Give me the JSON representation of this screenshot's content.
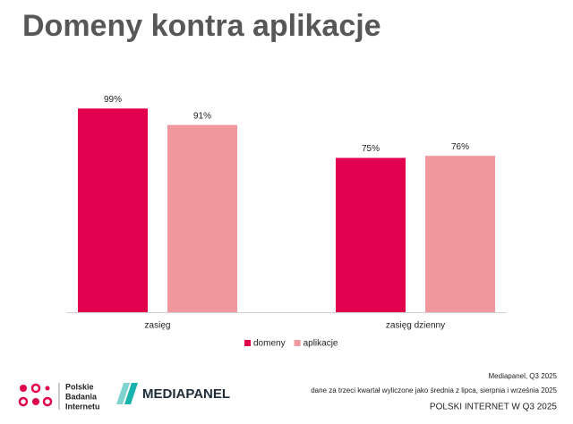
{
  "chart_data": {
    "type": "bar",
    "title": "Domeny kontra aplikacje",
    "categories": [
      "zasięg",
      "zasięg dzienny"
    ],
    "series": [
      {
        "name": "domeny",
        "color": "#e0004d",
        "values": [
          99,
          75
        ],
        "value_labels": [
          "99%",
          "75%"
        ]
      },
      {
        "name": "aplikacje",
        "color": "#f0989d",
        "values": [
          91,
          76
        ],
        "value_labels": [
          "91%",
          "76%"
        ]
      }
    ]
  },
  "footer": {
    "logo_pbi": [
      "Polskie",
      "Badania",
      "Internetu"
    ],
    "logo_mediapanel": "MEDIAPANEL",
    "source": "Mediapanel, Q3 2025",
    "note": "dane za trzeci kwartał wyliczone jako średnia z lipca, sierpnia i września 2025",
    "report": "POLSKI INTERNET W Q3 2025"
  }
}
